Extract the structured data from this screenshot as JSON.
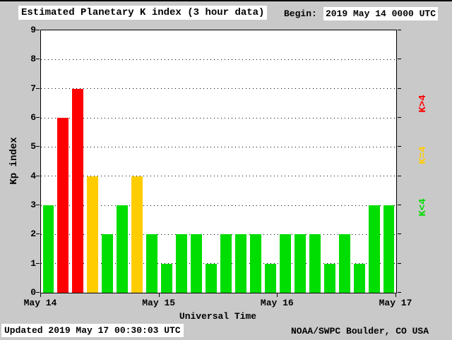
{
  "header": {
    "title": "Estimated Planetary K index (3 hour data)",
    "begin_label": "Begin:",
    "begin_value": "2019 May 14 0000 UTC"
  },
  "footer": {
    "updated": "Updated 2019 May 17 00:30:03 UTC",
    "source": "NOAA/SWPC Boulder, CO USA"
  },
  "legend": [
    {
      "label": "K>4",
      "color": "#ff0000"
    },
    {
      "label": "K=4",
      "color": "#ffcc00"
    },
    {
      "label": "K<4",
      "color": "#00dd00"
    }
  ],
  "chart_data": {
    "type": "bar",
    "title": "Estimated Planetary K index (3 hour data)",
    "xlabel": "Universal Time",
    "ylabel": "Kp index",
    "ylim": [
      0,
      9
    ],
    "yticks": [
      0,
      1,
      2,
      3,
      4,
      5,
      6,
      7,
      8,
      9
    ],
    "x_day_labels": [
      "May 14",
      "May 15",
      "May 16",
      "May 17"
    ],
    "bars_per_day": 8,
    "bar_interval_hours": 3,
    "values": [
      3,
      6,
      7,
      4,
      2,
      3,
      4,
      2,
      1,
      2,
      2,
      1,
      2,
      2,
      2,
      1,
      2,
      2,
      2,
      1,
      2,
      1,
      3,
      3
    ],
    "color_rules": {
      "below_4": "#00dd00",
      "equal_4": "#ffcc00",
      "above_4": "#ff0000"
    },
    "grid": "horizontal dotted",
    "legend_position": "right"
  }
}
